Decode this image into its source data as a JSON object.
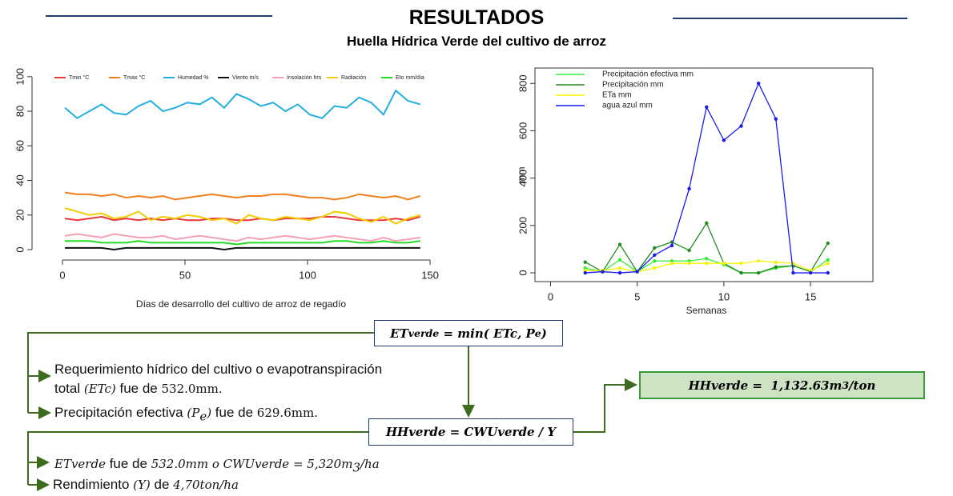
{
  "header": {
    "title": "RESULTADOS",
    "subtitle": "Huella Hídrica Verde del cultivo de arroz"
  },
  "chart_data": [
    {
      "type": "line",
      "xlabel": "Días de desarrollo del cultivo de arroz de regadío",
      "x": [
        1,
        6,
        11,
        16,
        21,
        26,
        31,
        36,
        41,
        46,
        51,
        56,
        61,
        66,
        71,
        76,
        81,
        86,
        91,
        96,
        101,
        106,
        111,
        116,
        121,
        126,
        131,
        136,
        141,
        146
      ],
      "series": [
        {
          "name": "Tmin °C",
          "color": "#e8383a",
          "values": [
            18,
            17,
            18,
            19,
            17,
            18,
            17,
            18,
            17,
            18,
            17,
            17,
            18,
            18,
            17,
            17,
            18,
            17,
            18,
            18,
            18,
            19,
            19,
            18,
            17,
            17,
            17,
            18,
            17,
            19
          ]
        },
        {
          "name": "Tmax °C",
          "color": "#f0801e",
          "values": [
            33,
            32,
            32,
            31,
            32,
            30,
            31,
            30,
            31,
            29,
            30,
            31,
            32,
            31,
            30,
            31,
            31,
            32,
            32,
            31,
            30,
            30,
            29,
            30,
            32,
            31,
            30,
            31,
            29,
            31
          ]
        },
        {
          "name": "Humedad %",
          "color": "#22aee0",
          "values": [
            82,
            76,
            80,
            84,
            79,
            78,
            83,
            86,
            80,
            82,
            85,
            84,
            88,
            82,
            90,
            87,
            83,
            85,
            80,
            84,
            78,
            76,
            83,
            82,
            88,
            85,
            78,
            92,
            86,
            84
          ]
        },
        {
          "name": "Viento m/s",
          "color": "#111111",
          "values": [
            1,
            1,
            1,
            1,
            0,
            1,
            1,
            1,
            1,
            1,
            1,
            1,
            1,
            0,
            1,
            1,
            1,
            1,
            1,
            1,
            1,
            1,
            1,
            1,
            1,
            1,
            1,
            1,
            1,
            1
          ]
        },
        {
          "name": "Insolación hrs",
          "color": "#f6a0b4",
          "values": [
            8,
            9,
            8,
            7,
            9,
            8,
            7,
            7,
            8,
            6,
            7,
            8,
            7,
            6,
            5,
            7,
            6,
            7,
            8,
            7,
            6,
            7,
            8,
            7,
            6,
            5,
            7,
            5,
            6,
            7
          ]
        },
        {
          "name": "Radiación",
          "color": "#f2cc00",
          "values": [
            24,
            22,
            20,
            21,
            18,
            19,
            22,
            17,
            19,
            18,
            20,
            19,
            17,
            18,
            15,
            20,
            18,
            17,
            19,
            18,
            17,
            19,
            22,
            21,
            18,
            16,
            19,
            15,
            18,
            20
          ]
        },
        {
          "name": "Eto mm/día",
          "color": "#22dd22",
          "values": [
            5,
            5,
            5,
            4,
            4,
            4,
            5,
            4,
            4,
            4,
            4,
            4,
            4,
            4,
            3,
            4,
            4,
            4,
            4,
            4,
            4,
            4,
            5,
            5,
            4,
            4,
            5,
            4,
            4,
            5
          ]
        }
      ],
      "xlim": [
        -12.4,
        152.6
      ],
      "ylim": [
        -6,
        105
      ],
      "xticks": [
        0,
        50,
        100,
        150
      ],
      "yticks": [
        0,
        20,
        40,
        60,
        80,
        100
      ],
      "legend": "top",
      "markers": false,
      "frame": false
    },
    {
      "type": "line",
      "xlabel": "Semanas",
      "ylabel": "mm",
      "x": [
        2,
        3,
        4,
        5,
        6,
        7,
        8,
        9,
        10,
        11,
        12,
        13,
        14,
        15,
        16
      ],
      "series": [
        {
          "name": "Precipitación efectiva mm",
          "color": "#33ee33",
          "values": [
            20,
            5,
            55,
            5,
            50,
            50,
            50,
            60,
            35,
            0,
            0,
            20,
            30,
            5,
            55
          ]
        },
        {
          "name": "Precipitación mm",
          "color": "#228b22",
          "values": [
            45,
            5,
            120,
            5,
            105,
            130,
            95,
            210,
            40,
            0,
            0,
            25,
            30,
            5,
            125
          ]
        },
        {
          "name": "ETa mm",
          "color": "#f4f400",
          "values": [
            10,
            10,
            20,
            5,
            20,
            40,
            40,
            40,
            40,
            40,
            50,
            45,
            40,
            10,
            40
          ]
        },
        {
          "name": "agua azul mm",
          "color": "#1a1aee",
          "values": [
            0,
            5,
            0,
            5,
            75,
            115,
            355,
            700,
            560,
            620,
            800,
            650,
            0,
            0,
            0
          ]
        }
      ],
      "xlim": [
        -0.9,
        18.6
      ],
      "ylim": [
        -37,
        865
      ],
      "xticks": [
        0,
        5,
        10,
        15
      ],
      "yticks": [
        0,
        200,
        400,
        600,
        800
      ],
      "legend": "top-left",
      "markers": true,
      "frame": true
    }
  ],
  "formulas": {
    "et_verde": [
      "ET",
      "verde",
      " = min( ",
      "ETc, P",
      "e",
      ")"
    ],
    "hh_verde": "HHverde = CWUverde / Y",
    "result": [
      "HHverde =  1,132.63m",
      "3",
      "/ton"
    ]
  },
  "notes": {
    "req": [
      "Requerimiento hídrico del cultivo o evapotranspiración",
      "total ",
      "(ETc)",
      " fue de ",
      "532.0mm",
      "."
    ],
    "precip": [
      "Precipitación efectiva ",
      "(P",
      "e",
      ")",
      " fue de ",
      "629.6mm",
      "."
    ],
    "etverde": [
      "ETverde",
      " fue de ",
      "532.0mm o CWUverde = 5,320m",
      "3",
      "/ha"
    ],
    "rend": [
      "Rendimiento ",
      "(Y)",
      " de ",
      "4,70ton/ha"
    ]
  }
}
